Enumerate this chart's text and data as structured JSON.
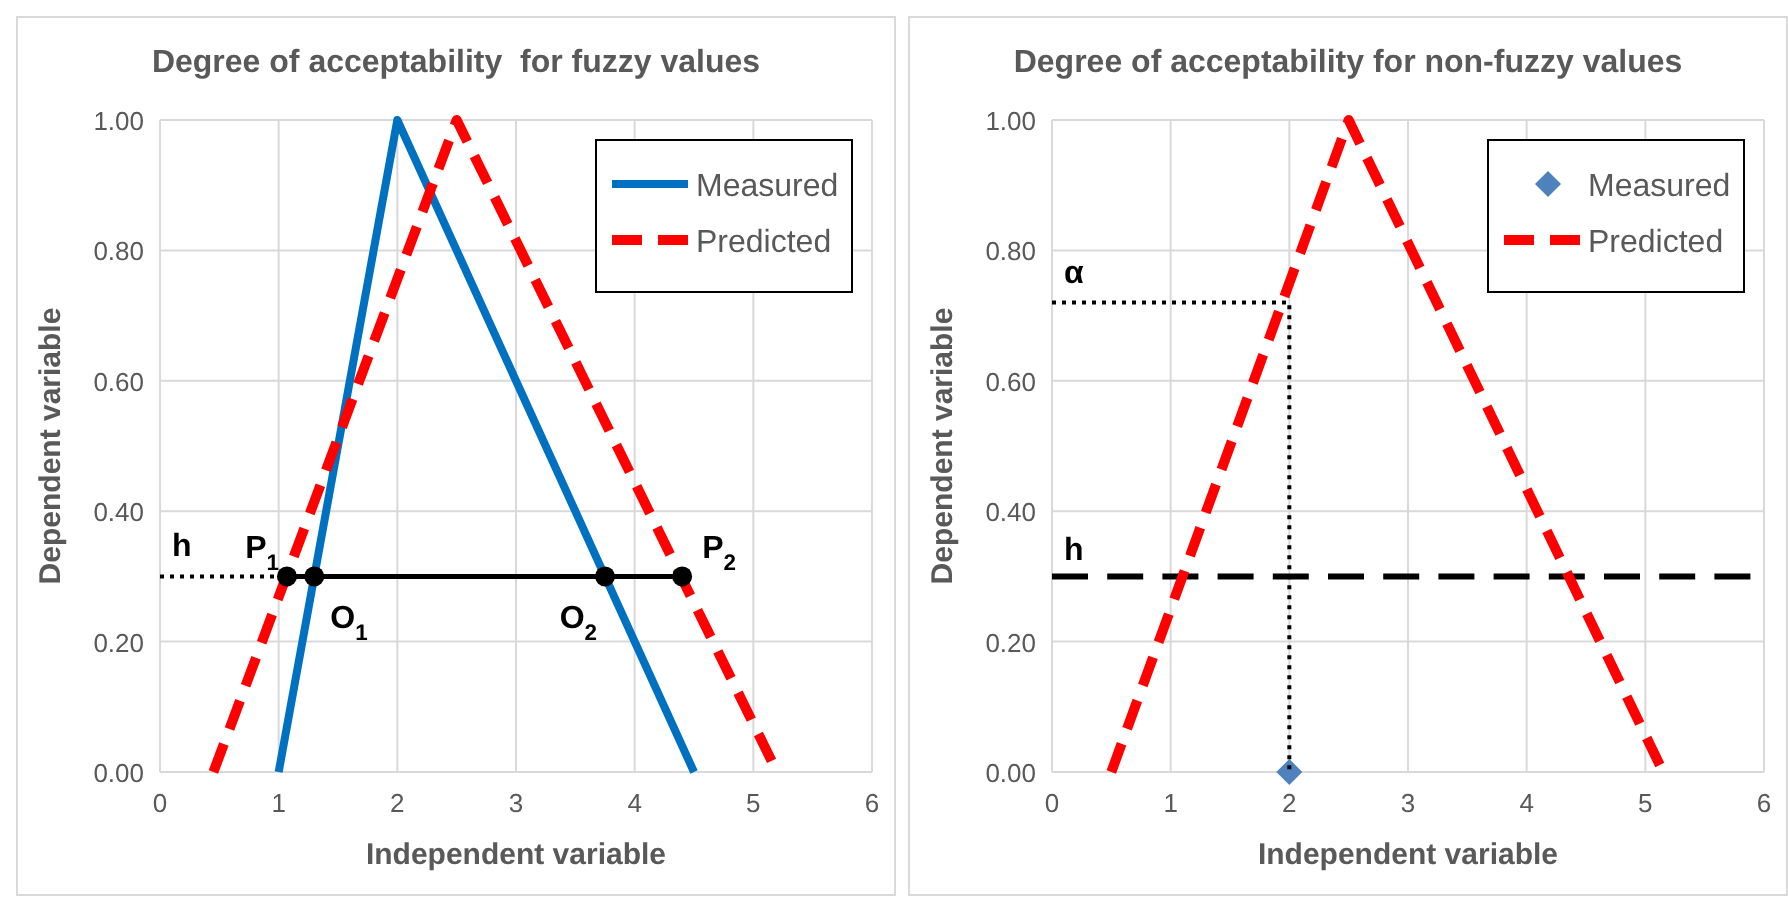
{
  "chart_data": [
    {
      "type": "line",
      "title": "Degree of acceptability  for fuzzy values",
      "xlabel": "Independent variable",
      "ylabel": "Dependent variable",
      "xlim": [
        0,
        6
      ],
      "xticks": [
        0,
        1,
        2,
        3,
        4,
        5,
        6
      ],
      "ylim": [
        0,
        1
      ],
      "yticks": [
        {
          "value": 0,
          "label": "0.00"
        },
        {
          "value": 0.2,
          "label": "0.20"
        },
        {
          "value": 0.4,
          "label": "0.40"
        },
        {
          "value": 0.6,
          "label": "0.60"
        },
        {
          "value": 0.8,
          "label": "0.80"
        },
        {
          "value": 1,
          "label": "1.00"
        }
      ],
      "grid": true,
      "legend": "top right",
      "series": [
        {
          "name": "Measured",
          "color": "#0070c0",
          "x": [
            1,
            2,
            4.5
          ],
          "values": [
            0,
            1,
            0
          ],
          "line_style": "solid",
          "marker": "none"
        },
        {
          "name": "Predicted",
          "color": "#ff0000",
          "x": [
            0.45,
            2.5,
            5.2
          ],
          "values": [
            0,
            1,
            0
          ],
          "line_style": "dashed",
          "marker": "none"
        },
        {
          "color": "#000000",
          "x": [
            0,
            1.07
          ],
          "values": [
            0.3,
            0.3
          ],
          "line_style": "dotted"
        },
        {
          "color": "#000000",
          "x": [
            1.07,
            1.3,
            3.75,
            4.4
          ],
          "values": [
            0.3,
            0.3,
            0.3,
            0.3
          ],
          "line_style": "solid",
          "marker": "circle"
        }
      ],
      "annotations": [
        {
          "text": "h",
          "x": 0,
          "y": 0.3
        },
        {
          "text": "P$_{1}$",
          "x": 1.07,
          "y": 0.3
        },
        {
          "text": "O$_{1}$",
          "x": 1.3,
          "y": 0.3
        },
        {
          "text": "O$_{2}$",
          "x": 3.75,
          "y": 0.3
        },
        {
          "text": "P$_{2}$",
          "x": 4.4,
          "y": 0.3
        }
      ]
    },
    {
      "type": "line",
      "title": "Degree of acceptability for non-fuzzy values",
      "xlabel": "Independent variable",
      "ylabel": "Dependent variable",
      "xlim": [
        0,
        6
      ],
      "xticks": [
        0,
        1,
        2,
        3,
        4,
        5,
        6
      ],
      "ylim": [
        0,
        1
      ],
      "yticks": [
        {
          "value": 0,
          "label": "0.00"
        },
        {
          "value": 0.2,
          "label": "0.20"
        },
        {
          "value": 0.4,
          "label": "0.40"
        },
        {
          "value": 0.6,
          "label": "0.60"
        },
        {
          "value": 0.8,
          "label": "0.80"
        },
        {
          "value": 1,
          "label": "1.00"
        }
      ],
      "grid": true,
      "legend": "top right",
      "series": [
        {
          "name": "Measured",
          "type": "scatter",
          "color": "#4f81bd",
          "x": [
            2
          ],
          "values": [
            0
          ],
          "marker": "diamond"
        },
        {
          "name": "Predicted",
          "color": "#ff0000",
          "x": [
            0.5,
            2.5,
            5.15
          ],
          "values": [
            0,
            1,
            0
          ],
          "line_style": "dashed",
          "marker": "none"
        },
        {
          "color": "#000000",
          "x": [
            0,
            2,
            2
          ],
          "values": [
            0.72,
            0.72,
            0
          ],
          "line_style": "dotted"
        }
      ],
      "ref_lines": [
        {
          "axis": "y",
          "value": 0.3,
          "label": "h",
          "color": "#000000",
          "line_style": "dashed"
        }
      ],
      "annotations": [
        {
          "text": "α",
          "x": 0,
          "y": 0.72
        }
      ]
    }
  ]
}
